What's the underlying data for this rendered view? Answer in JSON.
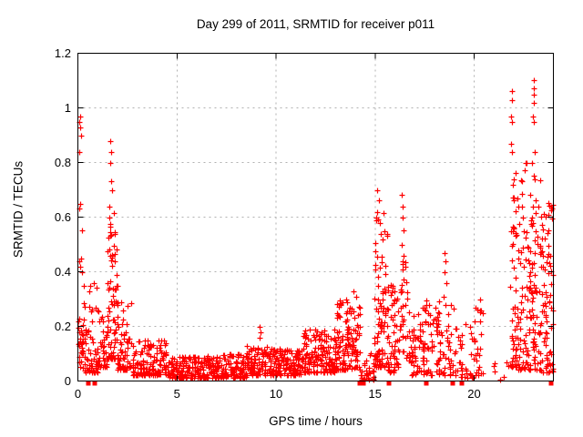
{
  "chart_data": {
    "type": "scatter",
    "title": "Day 299 of 2011, SRMTID for receiver p011",
    "xlabel": "GPS time / hours",
    "ylabel": "SRMTID / TECUs",
    "xlim": [
      0,
      24
    ],
    "ylim": [
      0,
      1.2
    ],
    "xticks": {
      "values": [
        0,
        5,
        10,
        15,
        20
      ],
      "labels": [
        "0",
        "5",
        "10",
        "15",
        "20"
      ]
    },
    "yticks": {
      "values": [
        0,
        0.2,
        0.4,
        0.6,
        0.8,
        1,
        1.2
      ],
      "labels": [
        "0",
        "0.2",
        "0.4",
        "0.6",
        "0.8",
        "1",
        "1.2"
      ]
    },
    "grid": {
      "on": true,
      "color": "#b0b0b0",
      "dash": [
        2,
        4
      ]
    },
    "border_color": "#000000",
    "marker": {
      "glyph": "plus",
      "size": 7,
      "color": "#ff0000",
      "stroke_width": 1.2
    },
    "zero_markers": {
      "glyph": "filled-square",
      "size": 5,
      "color": "#ff0000",
      "hours": [
        0.55,
        0.85,
        14.25,
        14.4,
        15.7,
        17.6,
        18.9,
        19.4,
        23.9
      ]
    },
    "seed": 299,
    "clusters_format": "[t_start_hr, t_end_hr, n_points, y_min_TECU, y_max_TECU, bottom_bias_exponent]",
    "clusters": [
      [
        0.02,
        0.35,
        14,
        0.1,
        0.24,
        1.0
      ],
      [
        0.05,
        0.55,
        25,
        0.04,
        0.2,
        1.5
      ],
      [
        0.3,
        1.1,
        55,
        0.03,
        0.38,
        2.2
      ],
      [
        1.1,
        1.45,
        30,
        0.05,
        0.25,
        1.8
      ],
      [
        1.45,
        2.0,
        85,
        0.08,
        0.62,
        2.0
      ],
      [
        2.0,
        2.7,
        65,
        0.04,
        0.3,
        2.2
      ],
      [
        2.7,
        4.6,
        150,
        0.02,
        0.15,
        1.9
      ],
      [
        4.6,
        6.5,
        150,
        0.01,
        0.09,
        1.6
      ],
      [
        6.5,
        8.5,
        160,
        0.01,
        0.1,
        1.6
      ],
      [
        8.5,
        9.7,
        100,
        0.02,
        0.13,
        1.6
      ],
      [
        9.7,
        11.4,
        150,
        0.02,
        0.12,
        1.5
      ],
      [
        11.4,
        13.0,
        150,
        0.03,
        0.19,
        1.6
      ],
      [
        13.0,
        14.25,
        130,
        0.04,
        0.3,
        1.8
      ],
      [
        14.25,
        14.95,
        28,
        0.005,
        0.12,
        1.5
      ],
      [
        14.95,
        15.65,
        95,
        0.05,
        0.62,
        1.9
      ],
      [
        15.65,
        16.15,
        55,
        0.03,
        0.36,
        1.8
      ],
      [
        16.2,
        16.65,
        35,
        0.08,
        0.5,
        1.4
      ],
      [
        16.65,
        17.45,
        60,
        0.02,
        0.27,
        1.6
      ],
      [
        17.45,
        18.25,
        55,
        0.02,
        0.3,
        1.6
      ],
      [
        18.25,
        19.25,
        45,
        0.02,
        0.28,
        1.7
      ],
      [
        19.25,
        20.0,
        30,
        0.01,
        0.22,
        2.0
      ],
      [
        20.0,
        20.45,
        22,
        0.02,
        0.28,
        1.9
      ],
      [
        20.45,
        21.75,
        7,
        0.005,
        0.07,
        1.5
      ],
      [
        21.8,
        22.15,
        50,
        0.05,
        0.78,
        1.5
      ],
      [
        22.15,
        23.35,
        150,
        0.04,
        0.8,
        1.5
      ],
      [
        23.35,
        24.0,
        85,
        0.03,
        0.66,
        1.6
      ]
    ],
    "points_format": "[t_hr, y_TECU] individually読 visible outliers",
    "points": [
      [
        0.08,
        0.95
      ],
      [
        0.11,
        0.93
      ],
      [
        0.1,
        0.97
      ],
      [
        0.14,
        0.9
      ],
      [
        0.06,
        0.84
      ],
      [
        0.1,
        0.65
      ],
      [
        0.07,
        0.63
      ],
      [
        0.2,
        0.55
      ],
      [
        0.06,
        0.44
      ],
      [
        0.1,
        0.42
      ],
      [
        0.16,
        0.45
      ],
      [
        0.22,
        0.4
      ],
      [
        1.62,
        0.88
      ],
      [
        1.66,
        0.84
      ],
      [
        1.64,
        0.8
      ],
      [
        1.7,
        0.73
      ],
      [
        1.72,
        0.7
      ],
      [
        1.6,
        0.64
      ],
      [
        9.15,
        0.2
      ],
      [
        9.22,
        0.18
      ],
      [
        9.18,
        0.16
      ],
      [
        13.9,
        0.33
      ],
      [
        14.05,
        0.31
      ],
      [
        15.12,
        0.7
      ],
      [
        15.18,
        0.66
      ],
      [
        15.1,
        0.62
      ],
      [
        15.22,
        0.58
      ],
      [
        16.35,
        0.68
      ],
      [
        16.4,
        0.64
      ],
      [
        16.38,
        0.6
      ],
      [
        16.42,
        0.55
      ],
      [
        16.36,
        0.5
      ],
      [
        18.5,
        0.47
      ],
      [
        18.55,
        0.44
      ],
      [
        18.52,
        0.4
      ],
      [
        18.58,
        0.36
      ],
      [
        18.48,
        0.31
      ],
      [
        20.28,
        0.3
      ],
      [
        20.32,
        0.26
      ],
      [
        20.3,
        0.22
      ],
      [
        21.9,
        1.06
      ],
      [
        21.9,
        1.03
      ],
      [
        21.88,
        0.97
      ],
      [
        21.92,
        0.95
      ],
      [
        21.88,
        0.87
      ],
      [
        21.91,
        0.84
      ],
      [
        23.0,
        1.1
      ],
      [
        23.0,
        1.07
      ],
      [
        23.0,
        1.05
      ],
      [
        23.02,
        1.02
      ],
      [
        22.98,
        0.97
      ],
      [
        23.0,
        0.95
      ],
      [
        23.05,
        0.84
      ]
    ]
  }
}
